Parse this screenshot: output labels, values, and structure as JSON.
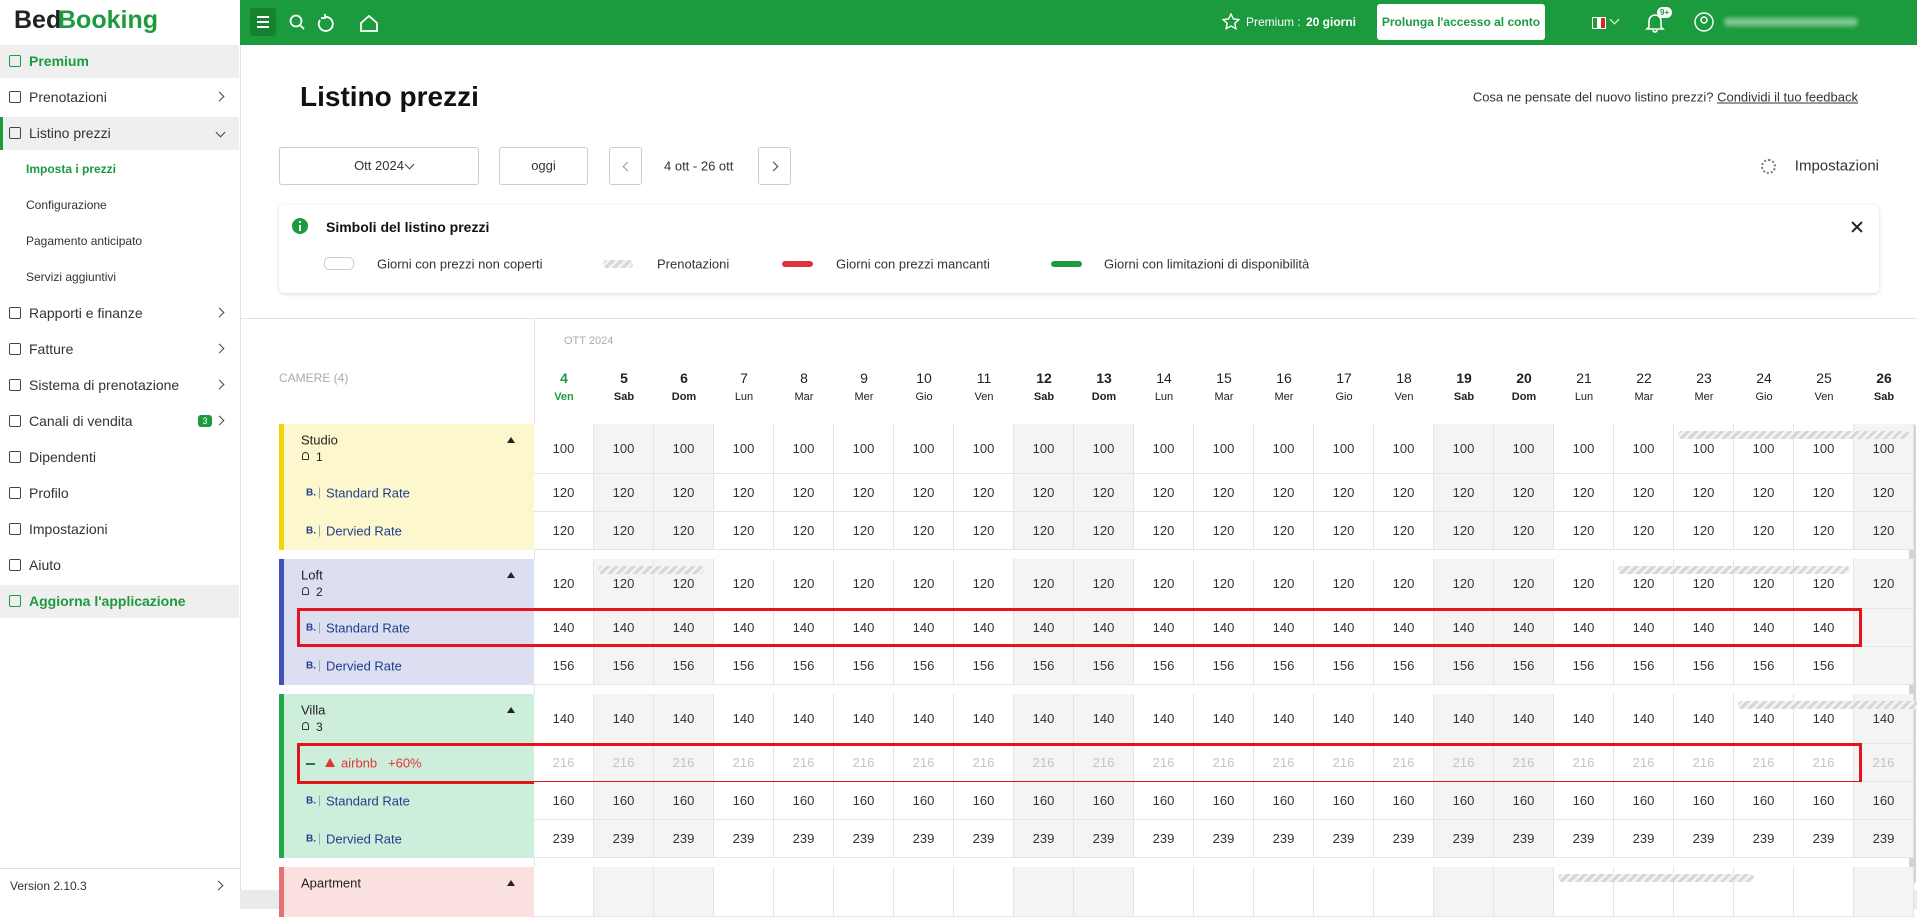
{
  "sidebar": {
    "logo": [
      "Bed",
      "Booking"
    ],
    "menu": [
      {
        "label": "Premium",
        "kind": "highlight"
      },
      {
        "label": "Prenotazioni",
        "kind": "item",
        "chevron": "right"
      },
      {
        "label": "Listino prezzi",
        "kind": "open",
        "chevron": "down"
      },
      {
        "label": "Imposta i prezzi",
        "kind": "sub-active"
      },
      {
        "label": "Configurazione",
        "kind": "sub"
      },
      {
        "label": "Pagamento anticipato",
        "kind": "sub"
      },
      {
        "label": "Servizi aggiuntivi",
        "kind": "sub"
      },
      {
        "label": "Rapporti e finanze",
        "kind": "item",
        "chevron": "right"
      },
      {
        "label": "Fatture",
        "kind": "item",
        "chevron": "right"
      },
      {
        "label": "Sistema di prenotazione",
        "kind": "item",
        "chevron": "right"
      },
      {
        "label": "Canali di vendita",
        "kind": "item",
        "chevron": "right",
        "badge": "3"
      },
      {
        "label": "Dipendenti",
        "kind": "item"
      },
      {
        "label": "Profilo",
        "kind": "item"
      },
      {
        "label": "Impostazioni",
        "kind": "item"
      },
      {
        "label": "Aiuto",
        "kind": "item"
      },
      {
        "label": "Aggiorna l'applicazione",
        "kind": "highlight"
      }
    ],
    "version": "Version 2.10.3"
  },
  "topbar": {
    "premium_label": "Premium :",
    "premium_days": "20 giorni",
    "cta": "Prolunga l'accesso al conto",
    "notifications": "9+"
  },
  "header": {
    "title": "Listino prezzi",
    "feedback_question": "Cosa ne pensate del nuovo listino prezzi?",
    "feedback_link": "Condividi il tuo feedback"
  },
  "controls": {
    "month": "Ott 2024",
    "today": "oggi",
    "range": "4 ott - 26 ott",
    "settings": "Impostazioni"
  },
  "legend": {
    "title": "Simboli del listino prezzi",
    "items": [
      {
        "label": "Giorni con prezzi non coperti",
        "symbol": "outline"
      },
      {
        "label": "Prenotazioni",
        "symbol": "hatch"
      },
      {
        "label": "Giorni con prezzi mancanti",
        "symbol": "#e0343b"
      },
      {
        "label": "Giorni con limitazioni di disponibilità",
        "symbol": "#1c9b3e"
      }
    ]
  },
  "grid": {
    "month": "OTT 2024",
    "rooms_label": "CAMERE (4)",
    "days": [
      {
        "day": 4,
        "weekday": "Ven"
      },
      {
        "day": 5,
        "weekday": "Sab"
      },
      {
        "day": 6,
        "weekday": "Dom"
      },
      {
        "day": 7,
        "weekday": "Lun"
      },
      {
        "day": 8,
        "weekday": "Mar"
      },
      {
        "day": 9,
        "weekday": "Mer"
      },
      {
        "day": 10,
        "weekday": "Gio"
      },
      {
        "day": 11,
        "weekday": "Ven"
      },
      {
        "day": 12,
        "weekday": "Sab"
      },
      {
        "day": 13,
        "weekday": "Dom"
      },
      {
        "day": 14,
        "weekday": "Lun"
      },
      {
        "day": 15,
        "weekday": "Mar"
      },
      {
        "day": 16,
        "weekday": "Mer"
      },
      {
        "day": 17,
        "weekday": "Gio"
      },
      {
        "day": 18,
        "weekday": "Ven"
      },
      {
        "day": 19,
        "weekday": "Sab"
      },
      {
        "day": 20,
        "weekday": "Dom"
      },
      {
        "day": 21,
        "weekday": "Lun"
      },
      {
        "day": 22,
        "weekday": "Mar"
      },
      {
        "day": 23,
        "weekday": "Mer"
      },
      {
        "day": 24,
        "weekday": "Gio"
      },
      {
        "day": 25,
        "weekday": "Ven"
      },
      {
        "day": 26,
        "weekday": "Sab"
      }
    ],
    "rooms": [
      {
        "name": "Studio",
        "guests": 1,
        "color": "#f5d20a",
        "background": "#fdf7cd",
        "availability": [
          100,
          100,
          100,
          100,
          100,
          100,
          100,
          100,
          100,
          100,
          100,
          100,
          100,
          100,
          100,
          100,
          100,
          100,
          100,
          100,
          100,
          100,
          100
        ],
        "rates": [
          {
            "source": "B.",
            "name": "Standard Rate",
            "prices": [
              120,
              120,
              120,
              120,
              120,
              120,
              120,
              120,
              120,
              120,
              120,
              120,
              120,
              120,
              120,
              120,
              120,
              120,
              120,
              120,
              120,
              120,
              120
            ]
          },
          {
            "source": "B.",
            "name": "Dervied Rate",
            "prices": [
              120,
              120,
              120,
              120,
              120,
              120,
              120,
              120,
              120,
              120,
              120,
              120,
              120,
              120,
              120,
              120,
              120,
              120,
              120,
              120,
              120,
              120,
              120
            ]
          }
        ]
      },
      {
        "name": "Loft",
        "guests": 2,
        "color": "#3f51b5",
        "background": "#dcdff2",
        "availability": [
          120,
          120,
          120,
          120,
          120,
          120,
          120,
          120,
          120,
          120,
          120,
          120,
          120,
          120,
          120,
          120,
          120,
          120,
          120,
          120,
          120,
          120,
          120
        ],
        "rates": [
          {
            "source": "B.",
            "name": "Standard Rate",
            "highlighted": true,
            "prices": [
              140,
              140,
              140,
              140,
              140,
              140,
              140,
              140,
              140,
              140,
              140,
              140,
              140,
              140,
              140,
              140,
              140,
              140,
              140,
              140,
              140,
              140,
              null
            ]
          },
          {
            "source": "B.",
            "name": "Dervied Rate",
            "prices": [
              156,
              156,
              156,
              156,
              156,
              156,
              156,
              156,
              156,
              156,
              156,
              156,
              156,
              156,
              156,
              156,
              156,
              156,
              156,
              156,
              156,
              156,
              null
            ]
          }
        ]
      },
      {
        "name": "Villa",
        "guests": 3,
        "color": "#1faa4a",
        "background": "#cdeedb",
        "availability": [
          140,
          140,
          140,
          140,
          140,
          140,
          140,
          140,
          140,
          140,
          140,
          140,
          140,
          140,
          140,
          140,
          140,
          140,
          140,
          140,
          140,
          140,
          140
        ],
        "rates": [
          {
            "name": "airbnb",
            "modifier": "+60%",
            "highlighted": true,
            "inactive": true,
            "prices": [
              216,
              216,
              216,
              216,
              216,
              216,
              216,
              216,
              216,
              216,
              216,
              216,
              216,
              216,
              216,
              216,
              216,
              216,
              216,
              216,
              216,
              216,
              216
            ]
          },
          {
            "source": "B.",
            "name": "Standard Rate",
            "prices": [
              160,
              160,
              160,
              160,
              160,
              160,
              160,
              160,
              160,
              160,
              160,
              160,
              160,
              160,
              160,
              160,
              160,
              160,
              160,
              160,
              160,
              160,
              160
            ]
          },
          {
            "source": "B.",
            "name": "Dervied Rate",
            "prices": [
              239,
              239,
              239,
              239,
              239,
              239,
              239,
              239,
              239,
              239,
              239,
              239,
              239,
              239,
              239,
              239,
              239,
              239,
              239,
              239,
              239,
              239,
              239
            ]
          }
        ]
      },
      {
        "name": "Apartment",
        "color": "#e57373",
        "background": "#fbe0e0",
        "rates": []
      }
    ]
  }
}
